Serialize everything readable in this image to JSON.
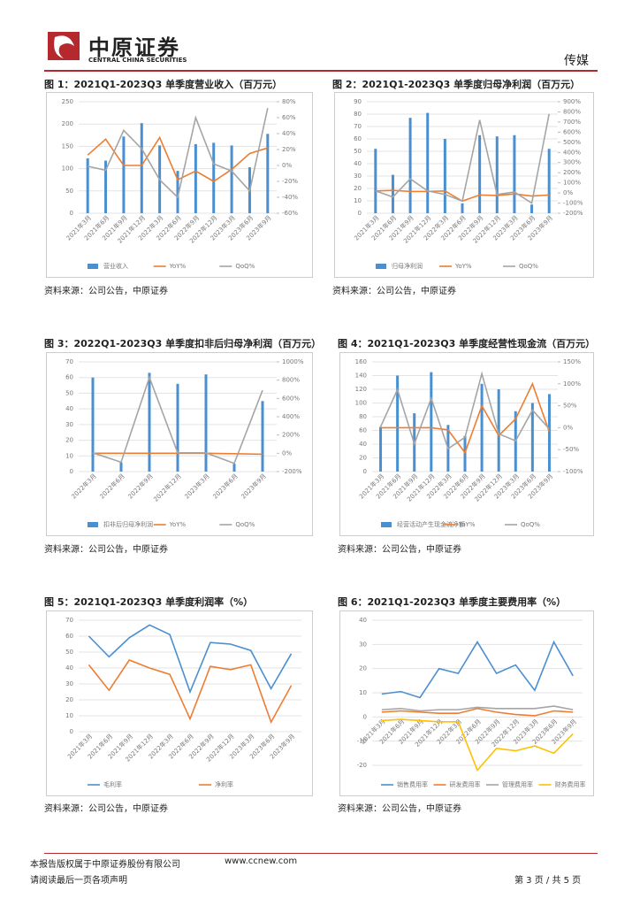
{
  "header": {
    "logo_cn": "中原证券",
    "logo_en": "CENTRAL CHINA SECURITIES",
    "sector": "传媒"
  },
  "footer": {
    "copyright": "本报告版权属于中原证券股份有限公司",
    "site": "www.ccnew.com",
    "notice": "请阅读最后一页各项声明",
    "page": "第 3 页 / 共 5 页"
  },
  "chart_data": [
    {
      "type": "combo",
      "title": "图 1：2021Q1-2023Q3 单季度营业收入（百万元）",
      "source": "资料来源：公司公告，中原证券",
      "categories": [
        "2021年3月",
        "2021年6月",
        "2021年9月",
        "2021年12月",
        "2022年3月",
        "2022年6月",
        "2022年9月",
        "2022年12月",
        "2023年3月",
        "2023年6月",
        "2023年9月"
      ],
      "ylim": [
        0,
        250
      ],
      "yticks": [
        0,
        50,
        100,
        150,
        200,
        250
      ],
      "y2lim": [
        -60,
        80
      ],
      "y2ticks": [
        {
          "value": -60,
          "label": "-60%"
        },
        {
          "value": -40,
          "label": "-40%"
        },
        {
          "value": -20,
          "label": "-20%"
        },
        {
          "value": 0,
          "label": "0%"
        },
        {
          "value": 20,
          "label": "20%"
        },
        {
          "value": 40,
          "label": "40%"
        },
        {
          "value": 60,
          "label": "60%"
        },
        {
          "value": 80,
          "label": "80%"
        }
      ],
      "series": [
        {
          "name": "营业收入",
          "kind": "bar",
          "color": "#4a8fd0",
          "values": [
            123,
            118,
            172,
            202,
            152,
            95,
            155,
            158,
            152,
            103,
            178
          ]
        },
        {
          "name": "YoY%",
          "kind": "line",
          "axis": "y2",
          "color": "#ed7d31",
          "values": [
            13,
            33,
            0,
            0,
            35,
            -18,
            -7,
            -20,
            -5,
            15,
            22
          ]
        },
        {
          "name": "QoQ%",
          "kind": "line",
          "axis": "y2",
          "color": "#a5a5a5",
          "values": [
            -1,
            -6,
            44,
            21,
            -18,
            -40,
            60,
            2,
            -7,
            -32,
            72
          ]
        }
      ]
    },
    {
      "type": "combo",
      "title": "图 2：2021Q1-2023Q3 单季度归母净利润（百万元）",
      "source": "资料来源：公司公告，中原证券",
      "categories": [
        "2021年3月",
        "2021年6月",
        "2021年9月",
        "2021年12月",
        "2022年3月",
        "2022年6月",
        "2022年9月",
        "2022年12月",
        "2023年3月",
        "2023年6月",
        "2023年9月"
      ],
      "ylim": [
        0,
        90
      ],
      "yticks": [
        0,
        10,
        20,
        30,
        40,
        50,
        60,
        70,
        80,
        90
      ],
      "y2lim": [
        -200,
        900
      ],
      "y2ticks": [
        {
          "value": -200,
          "label": "-200%"
        },
        {
          "value": -100,
          "label": "-100%"
        },
        {
          "value": 0,
          "label": "0%"
        },
        {
          "value": 100,
          "label": "100%"
        },
        {
          "value": 200,
          "label": "200%"
        },
        {
          "value": 300,
          "label": "300%"
        },
        {
          "value": 400,
          "label": "400%"
        },
        {
          "value": 500,
          "label": "500%"
        },
        {
          "value": 600,
          "label": "600%"
        },
        {
          "value": 700,
          "label": "700%"
        },
        {
          "value": 800,
          "label": "800%"
        },
        {
          "value": 900,
          "label": "900%"
        }
      ],
      "series": [
        {
          "name": "归母净利润",
          "kind": "bar",
          "color": "#4a8fd0",
          "values": [
            52,
            31,
            77,
            81,
            60,
            8,
            63,
            62,
            63,
            7,
            52
          ]
        },
        {
          "name": "YoY%",
          "kind": "line",
          "axis": "y2",
          "color": "#ed7d31",
          "values": [
            20,
            25,
            15,
            15,
            20,
            -80,
            -20,
            -25,
            -10,
            -30,
            -20
          ]
        },
        {
          "name": "QoQ%",
          "kind": "line",
          "axis": "y2",
          "color": "#a5a5a5",
          "values": [
            20,
            -40,
            140,
            20,
            -15,
            -80,
            720,
            -15,
            10,
            -100,
            780
          ]
        }
      ]
    },
    {
      "type": "combo",
      "title": "图 3：2022Q1-2023Q3 单季度扣非后归母净利润（百万元）",
      "source": "资料来源：公司公告，中原证券",
      "categories": [
        "2022年3月",
        "2022年6月",
        "2022年9月",
        "2022年12月",
        "2023年3月",
        "2023年6月",
        "2023年9月"
      ],
      "ylim": [
        0,
        70
      ],
      "yticks": [
        0,
        10,
        20,
        30,
        40,
        50,
        60,
        70
      ],
      "y2lim": [
        -200,
        1000
      ],
      "y2ticks": [
        {
          "value": -200,
          "label": "-200%"
        },
        {
          "value": 0,
          "label": "0%"
        },
        {
          "value": 200,
          "label": "200%"
        },
        {
          "value": 400,
          "label": "400%"
        },
        {
          "value": 600,
          "label": "600%"
        },
        {
          "value": 800,
          "label": "800%"
        },
        {
          "value": 1000,
          "label": "1000%"
        }
      ],
      "series": [
        {
          "name": "扣非后归母净利润",
          "kind": "bar",
          "color": "#4a8fd0",
          "values": [
            60,
            6,
            63,
            56,
            62,
            5,
            45
          ]
        },
        {
          "name": "YoY%",
          "kind": "line",
          "axis": "y2",
          "color": "#ed7d31",
          "values": [
            0,
            0,
            0,
            0,
            0,
            -5,
            -10
          ]
        },
        {
          "name": "QoQ%",
          "kind": "line",
          "axis": "y2",
          "color": "#a5a5a5",
          "values": [
            5,
            -97,
            830,
            5,
            5,
            -110,
            690
          ]
        }
      ]
    },
    {
      "type": "combo",
      "title": "图 4：2021Q1-2023Q3 单季度经营性现金流（百万元）",
      "source": "资料来源：公司公告，中原证券",
      "categories": [
        "2021年3月",
        "2021年6月",
        "2021年9月",
        "2021年12月",
        "2022年3月",
        "2022年6月",
        "2022年9月",
        "2022年12月",
        "2023年3月",
        "2023年6月",
        "2023年9月"
      ],
      "ylim": [
        0,
        160
      ],
      "yticks": [
        0,
        20,
        40,
        60,
        80,
        100,
        120,
        140,
        160
      ],
      "y2lim": [
        -100,
        150
      ],
      "y2ticks": [
        {
          "value": -100,
          "label": "-100%"
        },
        {
          "value": -50,
          "label": "-50%"
        },
        {
          "value": 0,
          "label": "0%"
        },
        {
          "value": 50,
          "label": "50%"
        },
        {
          "value": 100,
          "label": "100%"
        },
        {
          "value": 150,
          "label": "150%"
        }
      ],
      "series": [
        {
          "name": "经营活动产生现金流净额",
          "kind": "bar",
          "color": "#4a8fd0",
          "values": [
            65,
            140,
            85,
            145,
            68,
            52,
            128,
            120,
            88,
            100,
            113
          ]
        },
        {
          "name": "YoY%",
          "kind": "line",
          "axis": "y2",
          "color": "#ed7d31",
          "values": [
            0,
            0,
            0,
            0,
            -5,
            -57,
            50,
            -18,
            20,
            100,
            -10
          ]
        },
        {
          "name": "QoQ%",
          "kind": "line",
          "axis": "y2",
          "color": "#a5a5a5",
          "values": [
            2,
            87,
            -37,
            67,
            -48,
            -22,
            123,
            -14,
            -30,
            40,
            -3
          ]
        }
      ]
    },
    {
      "type": "line",
      "title": "图 5：2021Q1-2023Q3 单季度利润率（%）",
      "source": "资料来源：公司公告，中原证券",
      "categories": [
        "2021年3月",
        "2021年6月",
        "2021年9月",
        "2021年12月",
        "2022年3月",
        "2022年6月",
        "2022年9月",
        "2022年12月",
        "2023年3月",
        "2023年6月",
        "2023年9月"
      ],
      "ylim": [
        0,
        70
      ],
      "yticks": [
        0,
        10,
        20,
        30,
        40,
        50,
        60,
        70
      ],
      "series": [
        {
          "name": "毛利率",
          "color": "#4a8fd0",
          "values": [
            60,
            47,
            59,
            67,
            61,
            25,
            56,
            55,
            51,
            27,
            49
          ]
        },
        {
          "name": "净利率",
          "color": "#ed7d31",
          "values": [
            42,
            26,
            45,
            40,
            36,
            8,
            41,
            39,
            42,
            6,
            29
          ]
        }
      ]
    },
    {
      "type": "line",
      "title": "图 6：2021Q1-2023Q3 单季度主要费用率（%）",
      "source": "资料来源：公司公告，中原证券",
      "categories": [
        "2021年3月",
        "2021年6月",
        "2021年9月",
        "2021年12月",
        "2022年3月",
        "2022年6月",
        "2022年9月",
        "2022年12月",
        "2023年3月",
        "2023年6月",
        "2023年9月"
      ],
      "ylim": [
        -20,
        40
      ],
      "yticks": [
        -20,
        -10,
        0,
        10,
        20,
        30,
        40
      ],
      "series": [
        {
          "name": "销售费用率",
          "color": "#4a8fd0",
          "values": [
            9.5,
            10.5,
            8,
            20,
            18,
            31,
            18,
            21.5,
            11,
            31,
            17
          ]
        },
        {
          "name": "研发费用率",
          "color": "#ed7d31",
          "values": [
            2,
            2.5,
            2,
            1.5,
            1.5,
            3.5,
            2,
            1,
            0.5,
            2.5,
            2
          ]
        },
        {
          "name": "管理费用率",
          "color": "#a5a5a5",
          "values": [
            3,
            3.5,
            2.5,
            3,
            3,
            4,
            3.5,
            3.5,
            3.5,
            4.5,
            3
          ]
        },
        {
          "name": "财务费用率",
          "color": "#ffc000",
          "values": [
            -1.5,
            -1,
            -1.5,
            -2,
            -2,
            -22,
            -13,
            -14,
            -12,
            -15,
            -7
          ]
        }
      ]
    }
  ]
}
